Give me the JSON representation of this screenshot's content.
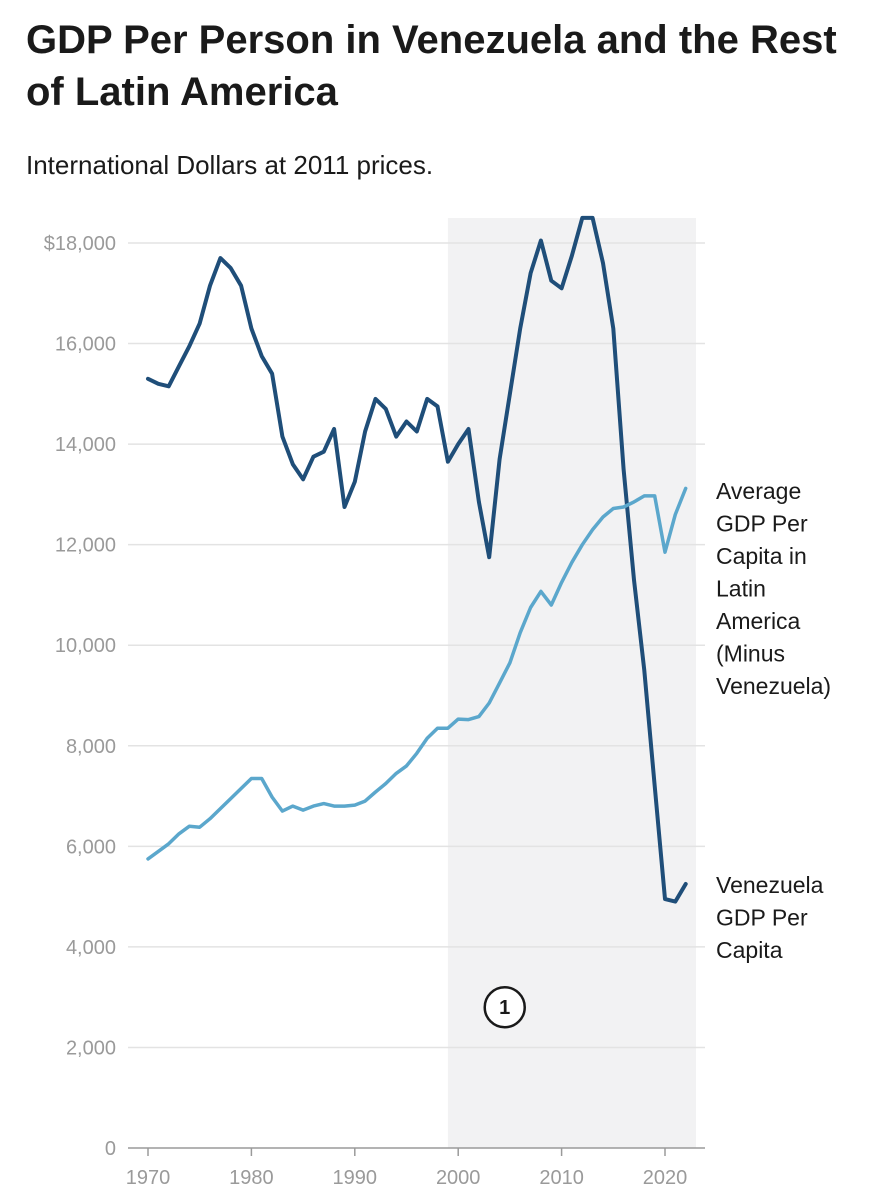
{
  "header": {
    "title": "GDP Per Person in Venezuela and the Rest of Latin America",
    "subtitle": "International Dollars at 2011 prices."
  },
  "colors": {
    "venezuela": "#1f4e79",
    "latin_america": "#5ba7cc",
    "shade": "#f2f2f3",
    "grid": "#e3e3e3"
  },
  "chart_data": {
    "type": "line",
    "title": "GDP Per Person in Venezuela and the Rest of Latin America",
    "subtitle": "International Dollars at 2011 prices.",
    "xlabel": "",
    "ylabel": "",
    "xlim": [
      1969,
      2024
    ],
    "ylim": [
      0,
      18500
    ],
    "grid": true,
    "x_ticks": [
      1970,
      1980,
      1990,
      2000,
      2010,
      2020
    ],
    "x_tick_labels": [
      "1970",
      "1980",
      "1990",
      "2000",
      "2010",
      "2020"
    ],
    "y_ticks": [
      0,
      2000,
      4000,
      6000,
      8000,
      10000,
      12000,
      14000,
      16000,
      18000
    ],
    "y_tick_labels": [
      "0",
      "2,000",
      "4,000",
      "6,000",
      "8,000",
      "10,000",
      "12,000",
      "14,000",
      "16,000",
      "$18,000"
    ],
    "shaded_region": {
      "from": 1999,
      "to": 2023
    },
    "annotation": {
      "x": 2004.5,
      "y": 2800,
      "text": "1"
    },
    "x": [
      1970,
      1971,
      1972,
      1973,
      1974,
      1975,
      1976,
      1977,
      1978,
      1979,
      1980,
      1981,
      1982,
      1983,
      1984,
      1985,
      1986,
      1987,
      1988,
      1989,
      1990,
      1991,
      1992,
      1993,
      1994,
      1995,
      1996,
      1997,
      1998,
      1999,
      2000,
      2001,
      2002,
      2003,
      2004,
      2005,
      2006,
      2007,
      2008,
      2009,
      2010,
      2011,
      2012,
      2013,
      2014,
      2015,
      2016,
      2017,
      2018,
      2019,
      2020,
      2021,
      2022
    ],
    "series": [
      {
        "name": "Venezuela GDP Per Capita",
        "label_lines": [
          "Venezuela",
          "GDP Per",
          "Capita"
        ],
        "values": [
          15300,
          15200,
          15150,
          15550,
          15950,
          16400,
          17150,
          17700,
          17500,
          17150,
          16300,
          15750,
          15400,
          14150,
          13600,
          13300,
          13750,
          13850,
          14300,
          12750,
          13250,
          14250,
          14900,
          14700,
          14150,
          14450,
          14250,
          14900,
          14750,
          13650,
          14000,
          14300,
          12850,
          11750,
          13700,
          15000,
          16300,
          17400,
          18050,
          17250,
          17100,
          17750,
          18500,
          18500,
          17600,
          16300,
          13500,
          11300,
          9500,
          7200,
          4950,
          4900,
          5250
        ]
      },
      {
        "name": "Average GDP Per Capita in Latin America (Minus Venezuela)",
        "label_lines": [
          "Average",
          "GDP Per",
          "Capita in",
          "Latin",
          "America",
          "(Minus",
          "Venezuela)"
        ],
        "values": [
          5750,
          5900,
          6050,
          6250,
          6400,
          6380,
          6550,
          6750,
          6950,
          7150,
          7350,
          7350,
          6980,
          6700,
          6800,
          6720,
          6800,
          6850,
          6800,
          6800,
          6820,
          6900,
          7080,
          7250,
          7450,
          7600,
          7850,
          8150,
          8350,
          8350,
          8530,
          8520,
          8580,
          8850,
          9250,
          9650,
          10250,
          10750,
          11070,
          10800,
          11250,
          11650,
          12000,
          12300,
          12550,
          12720,
          12750,
          12850,
          12970,
          12970,
          11850,
          12600,
          13120
        ]
      }
    ]
  }
}
